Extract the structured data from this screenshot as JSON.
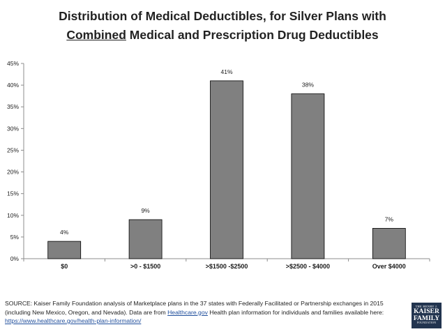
{
  "title": {
    "line1": "Distribution of Medical Deductibles, for Silver Plans with",
    "line2_underlined": "Combined",
    "line2_rest": " Medical and Prescription Drug Deductibles"
  },
  "chart_data": {
    "type": "bar",
    "categories": [
      "$0",
      ">0 - $1500",
      ">$1500 -$2500",
      ">$2500 - $4000",
      "Over $4000"
    ],
    "values": [
      4,
      9,
      41,
      38,
      7
    ],
    "data_labels": [
      "4%",
      "9%",
      "41%",
      "38%",
      "7%"
    ],
    "ylim": [
      0,
      45
    ],
    "yticks": [
      0,
      5,
      10,
      15,
      20,
      25,
      30,
      35,
      40,
      45
    ],
    "ytick_labels": [
      "0%",
      "5%",
      "10%",
      "15%",
      "20%",
      "25%",
      "30%",
      "35%",
      "40%",
      "45%"
    ],
    "bar_color": "#808080",
    "grid": false,
    "legend": "none"
  },
  "source": {
    "text1": "SOURCE: Kaiser Family Foundation analysis of Marketplace plans in the 37 states with Federally Facilitated or Partnership exchanges in 2015 (including New Mexico, Oregon, and Nevada). Data are from ",
    "link1": "Healthcare.gov",
    "text2": " Health plan information for individuals and families available here: ",
    "link2": "https://www.healthcare.gov/health-plan-information/"
  },
  "logo": {
    "line1": "THE HENRY J.",
    "line2": "KAISER",
    "line3": "FAMILY",
    "line4": "FOUNDATION"
  }
}
